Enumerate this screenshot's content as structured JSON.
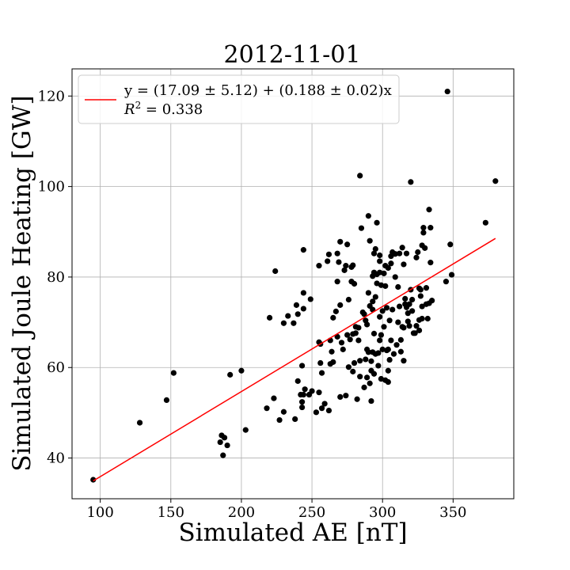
{
  "chart_data": {
    "type": "scatter",
    "title": "2012-11-01",
    "xlabel": "Simulated AE [nT]",
    "ylabel": "Simulated Joule Heating [GW]",
    "xlim": [
      80,
      393
    ],
    "ylim": [
      31,
      126
    ],
    "xticks": [
      100,
      150,
      200,
      250,
      300,
      350
    ],
    "yticks": [
      40,
      60,
      80,
      100,
      120
    ],
    "grid": true,
    "legend_position": "upper-left",
    "colors": {
      "points": "#000000",
      "fit_line": "#ff0000",
      "grid": "#b0b0b0"
    },
    "fit": {
      "intercept": 17.09,
      "slope": 0.188,
      "x_range": [
        95,
        380
      ],
      "label": "y = (17.09 ± 5.12) + (0.188 ± 0.02)x",
      "r2_prefix": "R",
      "r2_sup": "2",
      "r2_suffix": " = 0.338"
    },
    "points": [
      [
        95,
        35.2
      ],
      [
        128,
        47.8
      ],
      [
        147,
        52.8
      ],
      [
        152,
        58.8
      ],
      [
        185,
        43.5
      ],
      [
        186,
        45
      ],
      [
        187,
        40.6
      ],
      [
        188,
        44.5
      ],
      [
        190,
        42.8
      ],
      [
        192,
        58.4
      ],
      [
        200,
        59.3
      ],
      [
        203,
        46.2
      ],
      [
        218,
        51
      ],
      [
        220,
        71
      ],
      [
        223,
        53.2
      ],
      [
        224,
        81.3
      ],
      [
        227,
        48.4
      ],
      [
        230,
        69.8
      ],
      [
        230,
        50.2
      ],
      [
        233,
        71.4
      ],
      [
        237,
        69.8
      ],
      [
        238,
        48.6
      ],
      [
        239,
        73.8
      ],
      [
        240,
        71.8
      ],
      [
        240,
        57
      ],
      [
        242,
        54
      ],
      [
        243,
        60.4
      ],
      [
        243,
        52.4
      ],
      [
        243,
        51.2
      ],
      [
        244,
        54
      ],
      [
        244,
        86
      ],
      [
        244,
        76.5
      ],
      [
        244,
        73
      ],
      [
        245,
        55.2
      ],
      [
        248,
        54
      ],
      [
        249,
        75.1
      ],
      [
        250,
        54.8
      ],
      [
        253,
        50.1
      ],
      [
        255,
        54.5
      ],
      [
        255,
        82.5
      ],
      [
        255,
        65.6
      ],
      [
        256,
        61
      ],
      [
        256,
        65.2
      ],
      [
        257,
        58.8
      ],
      [
        257,
        51
      ],
      [
        259,
        52
      ],
      [
        261,
        83.5
      ],
      [
        262,
        85
      ],
      [
        262,
        50.5
      ],
      [
        263,
        60.8
      ],
      [
        263,
        66
      ],
      [
        264,
        63.5
      ],
      [
        265,
        71
      ],
      [
        265,
        61.2
      ],
      [
        267,
        72.4
      ],
      [
        268,
        85.2
      ],
      [
        268,
        79
      ],
      [
        268,
        66.8
      ],
      [
        269,
        83.3
      ],
      [
        270,
        87.8
      ],
      [
        270,
        73.8
      ],
      [
        270,
        53.5
      ],
      [
        271,
        65.5
      ],
      [
        272,
        64
      ],
      [
        273,
        81.5
      ],
      [
        274,
        82.5
      ],
      [
        274,
        53.8
      ],
      [
        275,
        87.2
      ],
      [
        275,
        67.2
      ],
      [
        276,
        75
      ],
      [
        276,
        60.1
      ],
      [
        277,
        66.2
      ],
      [
        278,
        82.2
      ],
      [
        278,
        79
      ],
      [
        279,
        82.6
      ],
      [
        279,
        67.4
      ],
      [
        279,
        59.1
      ],
      [
        280,
        78.5
      ],
      [
        280,
        61
      ],
      [
        281,
        69
      ],
      [
        281,
        67.6
      ],
      [
        282,
        53
      ],
      [
        283,
        68.8
      ],
      [
        283,
        66
      ],
      [
        284,
        102.4
      ],
      [
        284,
        58
      ],
      [
        284,
        61.5
      ],
      [
        285,
        90.8
      ],
      [
        286,
        72.2
      ],
      [
        287,
        55.6
      ],
      [
        287,
        71.8
      ],
      [
        288,
        61.8
      ],
      [
        288,
        70.4
      ],
      [
        289,
        64
      ],
      [
        289,
        69.5
      ],
      [
        289,
        57.8
      ],
      [
        290,
        93.5
      ],
      [
        290,
        76.5
      ],
      [
        290,
        63.4
      ],
      [
        291,
        88
      ],
      [
        291,
        73.6
      ],
      [
        291,
        56.5
      ],
      [
        292,
        61.4
      ],
      [
        292,
        59.3
      ],
      [
        292,
        52.6
      ],
      [
        293,
        80.2
      ],
      [
        293,
        74.6
      ],
      [
        293,
        72.8
      ],
      [
        293,
        63.4
      ],
      [
        294,
        85.2
      ],
      [
        294,
        81
      ],
      [
        294,
        67.5
      ],
      [
        294,
        58.6
      ],
      [
        295,
        86.2
      ],
      [
        295,
        75.6
      ],
      [
        295,
        63
      ],
      [
        296,
        80.6
      ],
      [
        296,
        92
      ],
      [
        296,
        78.6
      ],
      [
        297,
        63.2
      ],
      [
        297,
        60.4
      ],
      [
        298,
        84.8
      ],
      [
        298,
        81
      ],
      [
        298,
        83.5
      ],
      [
        298,
        71.2
      ],
      [
        298,
        66
      ],
      [
        299,
        78.2
      ],
      [
        299,
        67.2
      ],
      [
        299,
        57.5
      ],
      [
        300,
        72.5
      ],
      [
        300,
        64
      ],
      [
        301,
        80.8
      ],
      [
        301,
        69
      ],
      [
        302,
        82.5
      ],
      [
        302,
        78
      ],
      [
        302,
        57.2
      ],
      [
        303,
        63.8
      ],
      [
        303,
        73.2
      ],
      [
        304,
        82
      ],
      [
        304,
        64
      ],
      [
        304,
        56.8
      ],
      [
        304,
        59.3
      ],
      [
        305,
        70.4
      ],
      [
        305,
        61.7
      ],
      [
        306,
        83
      ],
      [
        306,
        84.6
      ],
      [
        306,
        66
      ],
      [
        307,
        85.5
      ],
      [
        307,
        72.8
      ],
      [
        308,
        63
      ],
      [
        309,
        85.1
      ],
      [
        309,
        80
      ],
      [
        310,
        65
      ],
      [
        311,
        70
      ],
      [
        311,
        77.8
      ],
      [
        312,
        85.2
      ],
      [
        312,
        73.5
      ],
      [
        313,
        66.1
      ],
      [
        313,
        63.5
      ],
      [
        314,
        86.5
      ],
      [
        314,
        69
      ],
      [
        315,
        82.8
      ],
      [
        315,
        68.8
      ],
      [
        315,
        61.5
      ],
      [
        316,
        74
      ],
      [
        316,
        75.2
      ],
      [
        317,
        85.2
      ],
      [
        317,
        73.3
      ],
      [
        318,
        72
      ],
      [
        318,
        70.2
      ],
      [
        319,
        69.2
      ],
      [
        319,
        74
      ],
      [
        320,
        101
      ],
      [
        320,
        77.2
      ],
      [
        321,
        75
      ],
      [
        321,
        72.5
      ],
      [
        322,
        67.6
      ],
      [
        323,
        67.6
      ],
      [
        324,
        84.3
      ],
      [
        324,
        69.2
      ],
      [
        325,
        85.5
      ],
      [
        326,
        70.5
      ],
      [
        326,
        77.5
      ],
      [
        326,
        68.2
      ],
      [
        327,
        75.8
      ],
      [
        327,
        77.2
      ],
      [
        328,
        73.5
      ],
      [
        328,
        87
      ],
      [
        328,
        70.8
      ],
      [
        329,
        90.9
      ],
      [
        329,
        89.8
      ],
      [
        330,
        86.4
      ],
      [
        331,
        77.6
      ],
      [
        331,
        74
      ],
      [
        332,
        70.8
      ],
      [
        333,
        94.9
      ],
      [
        333,
        74.2
      ],
      [
        334,
        90.9
      ],
      [
        334,
        83.2
      ],
      [
        335,
        74.8
      ],
      [
        345,
        79
      ],
      [
        346,
        121
      ],
      [
        348,
        87.2
      ],
      [
        349,
        80.5
      ],
      [
        373,
        92
      ],
      [
        380,
        101.2
      ]
    ]
  }
}
